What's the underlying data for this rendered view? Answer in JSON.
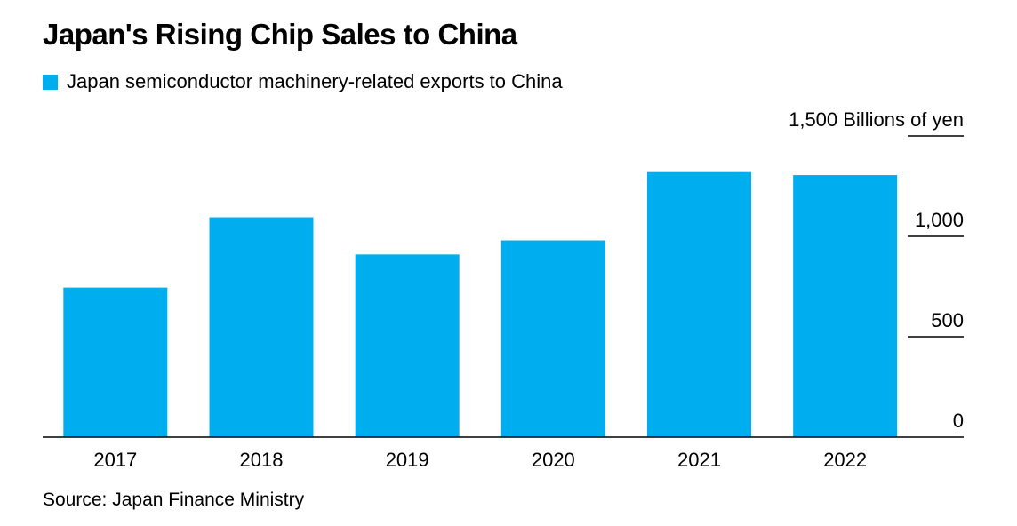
{
  "chart_data": {
    "type": "bar",
    "title": "Japan's Rising Chip Sales to China",
    "categories": [
      "2017",
      "2018",
      "2019",
      "2020",
      "2021",
      "2022"
    ],
    "series": [
      {
        "name": "Japan semiconductor machinery-related exports to China",
        "values": [
          745,
          1095,
          910,
          980,
          1320,
          1305
        ],
        "color": "#00aeef"
      }
    ],
    "ylabel": "Billions of yen",
    "ylim": [
      0,
      1500
    ],
    "yticks": [
      {
        "value": 0,
        "label": "0"
      },
      {
        "value": 500,
        "label": "500"
      },
      {
        "value": 1000,
        "label": "1,000"
      },
      {
        "value": 1500,
        "label": "1,500 Billions of yen"
      }
    ],
    "grid": false,
    "legend_position": "top-left",
    "source": "Source: Japan Finance Ministry"
  }
}
